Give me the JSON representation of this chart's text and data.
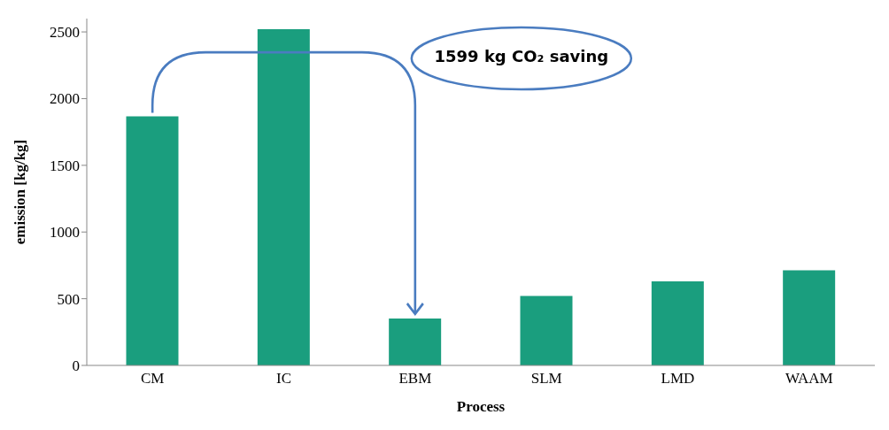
{
  "chart_data": {
    "type": "bar",
    "xlabel": "Process",
    "ylabel": "emission [kg/kg]",
    "categories": [
      "CM",
      "IC",
      "EBM",
      "SLM",
      "LMD",
      "WAAM"
    ],
    "values": [
      1867,
      2521,
      352,
      520,
      630,
      713
    ],
    "color": "#1a9e7e",
    "ylim": [
      0,
      2600
    ],
    "yticks": [
      0,
      500,
      1000,
      1500,
      2000,
      2500
    ],
    "grid": false,
    "legend": false,
    "annotations": [
      "1599 kg CO₂ saving"
    ]
  }
}
